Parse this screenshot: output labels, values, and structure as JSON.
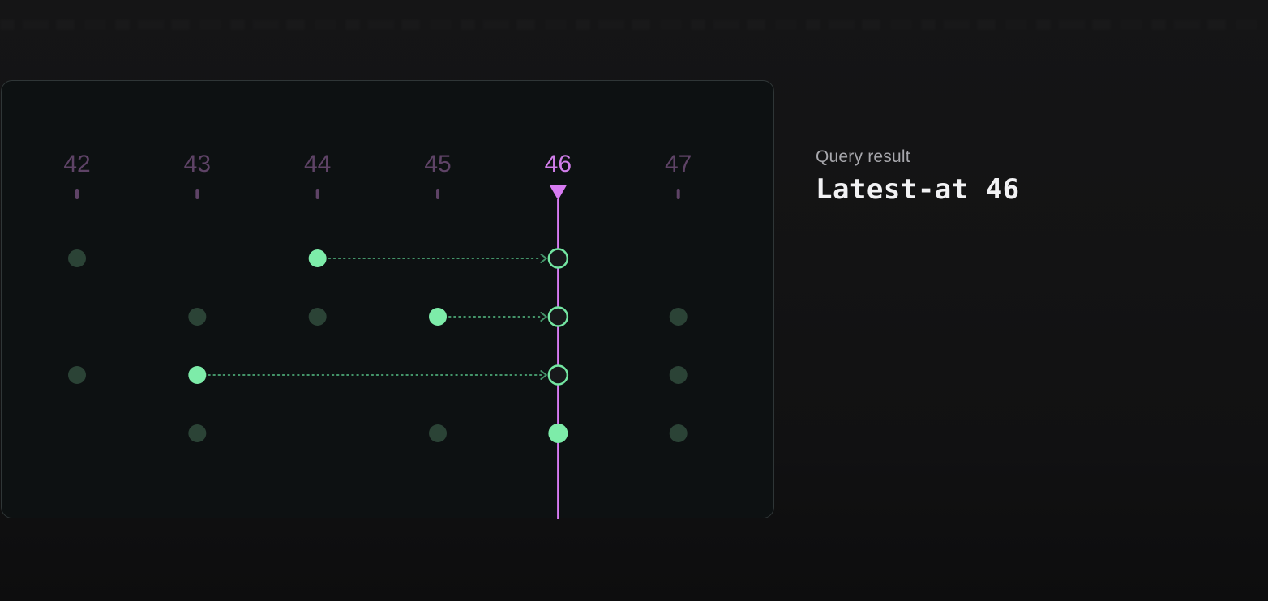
{
  "result": {
    "label": "Query result",
    "value": "Latest-at 46"
  },
  "diagram": {
    "ticks": [
      42,
      43,
      44,
      45,
      46,
      47
    ],
    "query_t": 46,
    "rows": [
      {
        "events": [
          {
            "t": 42,
            "kind": "stale"
          },
          {
            "t": 44,
            "kind": "latest"
          }
        ]
      },
      {
        "events": [
          {
            "t": 43,
            "kind": "stale"
          },
          {
            "t": 44,
            "kind": "stale"
          },
          {
            "t": 45,
            "kind": "latest"
          },
          {
            "t": 47,
            "kind": "stale"
          }
        ]
      },
      {
        "events": [
          {
            "t": 42,
            "kind": "stale"
          },
          {
            "t": 43,
            "kind": "latest"
          },
          {
            "t": 47,
            "kind": "stale"
          }
        ]
      },
      {
        "events": [
          {
            "t": 43,
            "kind": "stale"
          },
          {
            "t": 45,
            "kind": "stale"
          },
          {
            "t": 46,
            "kind": "latest"
          },
          {
            "t": 47,
            "kind": "stale"
          }
        ]
      }
    ],
    "colors": {
      "needle": "#d77bf2",
      "query_label": "#cf7de8",
      "tick_dim": "#5e4366",
      "event_latest": "#7deca9",
      "event_stale": "#2b4336",
      "connector": "#44966a",
      "ring_stroke": "#73e6a2",
      "ring_fill": "#17191b",
      "result_label": "#a7a7ac",
      "result_value": "#f2f2f4"
    }
  }
}
